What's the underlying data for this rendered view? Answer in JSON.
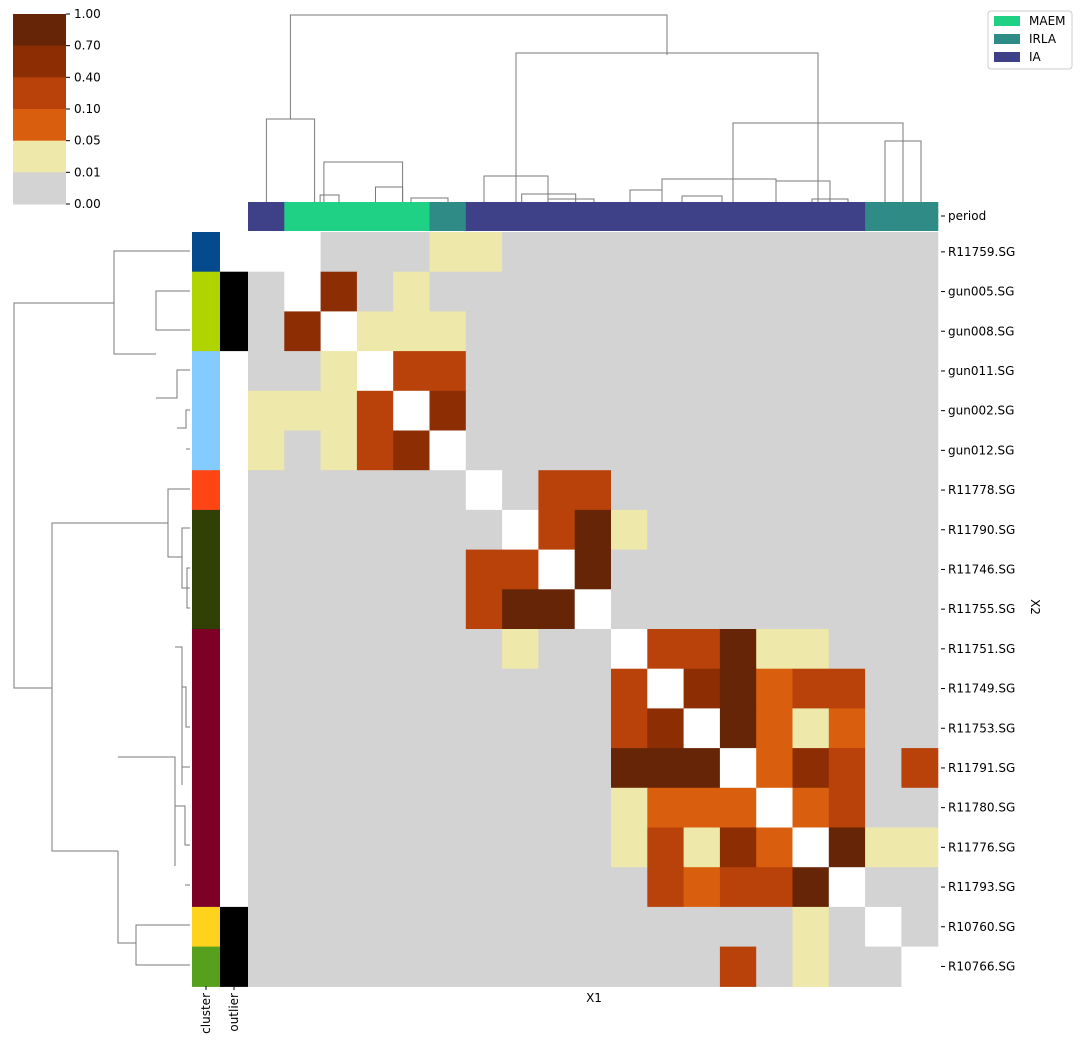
{
  "chart_data": {
    "type": "heatmap",
    "x_axis_label": "X1",
    "y_axis_label": "X2",
    "rows": [
      "R11759.SG",
      "gun005.SG",
      "gun008.SG",
      "gun011.SG",
      "gun002.SG",
      "gun012.SG",
      "R11778.SG",
      "R11790.SG",
      "R11746.SG",
      "R11755.SG",
      "R11751.SG",
      "R11749.SG",
      "R11753.SG",
      "R11791.SG",
      "R11780.SG",
      "R11776.SG",
      "R11793.SG",
      "R10760.SG",
      "R10766.SG"
    ],
    "column_count": 19,
    "matrix": [
      [
        null,
        null,
        0.005,
        0.005,
        0.005,
        0.03,
        0.03,
        0.005,
        0.005,
        0.005,
        0.005,
        0.005,
        0.005,
        0.005,
        0.005,
        0.005,
        0.005,
        0.005,
        0.005
      ],
      [
        0.005,
        null,
        0.5,
        0.005,
        0.03,
        0.005,
        0.005,
        0.005,
        0.005,
        0.005,
        0.005,
        0.005,
        0.005,
        0.005,
        0.005,
        0.005,
        0.005,
        0.005,
        0.005
      ],
      [
        0.005,
        0.5,
        null,
        0.03,
        0.03,
        0.03,
        0.005,
        0.005,
        0.005,
        0.005,
        0.005,
        0.005,
        0.005,
        0.005,
        0.005,
        0.005,
        0.005,
        0.005,
        0.005
      ],
      [
        0.005,
        0.005,
        0.03,
        null,
        0.2,
        0.2,
        0.005,
        0.005,
        0.005,
        0.005,
        0.005,
        0.005,
        0.005,
        0.005,
        0.005,
        0.005,
        0.005,
        0.005,
        0.005
      ],
      [
        0.03,
        0.03,
        0.03,
        0.2,
        null,
        0.5,
        0.005,
        0.005,
        0.005,
        0.005,
        0.005,
        0.005,
        0.005,
        0.005,
        0.005,
        0.005,
        0.005,
        0.005,
        0.005
      ],
      [
        0.03,
        0.005,
        0.03,
        0.2,
        0.5,
        null,
        0.005,
        0.005,
        0.005,
        0.005,
        0.005,
        0.005,
        0.005,
        0.005,
        0.005,
        0.005,
        0.005,
        0.005,
        0.005
      ],
      [
        0.005,
        0.005,
        0.005,
        0.005,
        0.005,
        0.005,
        null,
        0.005,
        0.2,
        0.2,
        0.005,
        0.005,
        0.005,
        0.005,
        0.005,
        0.005,
        0.005,
        0.005,
        0.005
      ],
      [
        0.005,
        0.005,
        0.005,
        0.005,
        0.005,
        0.005,
        0.005,
        null,
        0.2,
        0.8,
        0.03,
        0.005,
        0.005,
        0.005,
        0.005,
        0.005,
        0.005,
        0.005,
        0.005
      ],
      [
        0.005,
        0.005,
        0.005,
        0.005,
        0.005,
        0.005,
        0.2,
        0.2,
        null,
        0.8,
        0.005,
        0.005,
        0.005,
        0.005,
        0.005,
        0.005,
        0.005,
        0.005,
        0.005
      ],
      [
        0.005,
        0.005,
        0.005,
        0.005,
        0.005,
        0.005,
        0.2,
        0.8,
        0.8,
        null,
        0.005,
        0.005,
        0.005,
        0.005,
        0.005,
        0.005,
        0.005,
        0.005,
        0.005
      ],
      [
        0.005,
        0.005,
        0.005,
        0.005,
        0.005,
        0.005,
        0.005,
        0.03,
        0.005,
        0.005,
        null,
        0.2,
        0.2,
        0.8,
        0.03,
        0.03,
        0.005,
        0.005,
        0.005
      ],
      [
        0.005,
        0.005,
        0.005,
        0.005,
        0.005,
        0.005,
        0.005,
        0.005,
        0.005,
        0.005,
        0.2,
        null,
        0.5,
        0.8,
        0.07,
        0.2,
        0.2,
        0.005,
        0.005
      ],
      [
        0.005,
        0.005,
        0.005,
        0.005,
        0.005,
        0.005,
        0.005,
        0.005,
        0.005,
        0.005,
        0.2,
        0.5,
        null,
        0.8,
        0.07,
        0.03,
        0.07,
        0.005,
        0.005
      ],
      [
        0.005,
        0.005,
        0.005,
        0.005,
        0.005,
        0.005,
        0.005,
        0.005,
        0.005,
        0.005,
        0.8,
        0.8,
        0.8,
        null,
        0.07,
        0.5,
        0.2,
        0.005,
        0.2
      ],
      [
        0.005,
        0.005,
        0.005,
        0.005,
        0.005,
        0.005,
        0.005,
        0.005,
        0.005,
        0.005,
        0.03,
        0.07,
        0.07,
        0.07,
        null,
        0.07,
        0.2,
        0.005,
        0.005
      ],
      [
        0.005,
        0.005,
        0.005,
        0.005,
        0.005,
        0.005,
        0.005,
        0.005,
        0.005,
        0.005,
        0.03,
        0.2,
        0.03,
        0.5,
        0.07,
        null,
        0.8,
        0.03,
        0.03
      ],
      [
        0.005,
        0.005,
        0.005,
        0.005,
        0.005,
        0.005,
        0.005,
        0.005,
        0.005,
        0.005,
        0.005,
        0.2,
        0.07,
        0.2,
        0.2,
        0.8,
        null,
        0.005,
        0.005
      ],
      [
        0.005,
        0.005,
        0.005,
        0.005,
        0.005,
        0.005,
        0.005,
        0.005,
        0.005,
        0.005,
        0.005,
        0.005,
        0.005,
        0.005,
        0.005,
        0.03,
        0.005,
        null,
        0.005
      ],
      [
        0.005,
        0.005,
        0.005,
        0.005,
        0.005,
        0.005,
        0.005,
        0.005,
        0.005,
        0.005,
        0.005,
        0.005,
        0.005,
        0.2,
        0.005,
        0.03,
        0.005,
        0.005,
        null
      ]
    ],
    "colorbar": {
      "ticks": [
        "1.00",
        "0.70",
        "0.40",
        "0.10",
        "0.05",
        "0.01",
        "0.00"
      ],
      "bounds": [
        0,
        0.01,
        0.05,
        0.1,
        0.4,
        0.7,
        1.0
      ],
      "colors": [
        "#d3d3d3",
        "#eee8aa",
        "#d95f0e",
        "#b8420a",
        "#8c2d04",
        "#662506"
      ],
      "missing_color": "#ffffff"
    },
    "column_annotation": {
      "label": "period",
      "values": [
        "IA",
        "MAEM",
        "MAEM",
        "MAEM",
        "MAEM",
        "IRLA",
        "IA",
        "IA",
        "IA",
        "IA",
        "IA",
        "IA",
        "IA",
        "IA",
        "IA",
        "IA",
        "IA",
        "IRLA",
        "IRLA"
      ]
    },
    "legend": {
      "position": "top-right",
      "entries": [
        {
          "label": "MAEM",
          "color": "#1fd184"
        },
        {
          "label": "IRLA",
          "color": "#2e8b86"
        },
        {
          "label": "IA",
          "color": "#3f4188"
        }
      ]
    },
    "row_annotations": [
      {
        "label": "cluster",
        "colors": [
          "#044a8c",
          "#b0d400",
          "#b0d400",
          "#84cbff",
          "#84cbff",
          "#84cbff",
          "#ff4513",
          "#314005",
          "#314005",
          "#314005",
          "#7d0027",
          "#7d0027",
          "#7d0027",
          "#7d0027",
          "#7d0027",
          "#7d0027",
          "#7d0027",
          "#ffd21e",
          "#57a01e"
        ]
      },
      {
        "label": "outlier",
        "colors": [
          "#ffffff",
          "#000000",
          "#000000",
          "#ffffff",
          "#ffffff",
          "#ffffff",
          "#ffffff",
          "#ffffff",
          "#ffffff",
          "#ffffff",
          "#ffffff",
          "#ffffff",
          "#ffffff",
          "#ffffff",
          "#ffffff",
          "#ffffff",
          "#ffffff",
          "#000000",
          "#000000"
        ]
      }
    ]
  }
}
